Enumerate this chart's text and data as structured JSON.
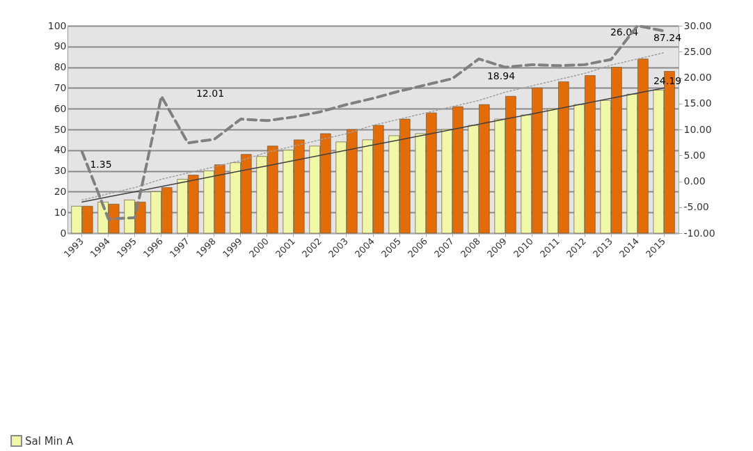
{
  "chart_data": {
    "type": "bar",
    "categories": [
      "1993",
      "1994",
      "1995",
      "1996",
      "1997",
      "1998",
      "1999",
      "2000",
      "2001",
      "2002",
      "2003",
      "2004",
      "2005",
      "2006",
      "2007",
      "2008",
      "2009",
      "2010",
      "2011",
      "2012",
      "2013",
      "2014",
      "2015"
    ],
    "series": [
      {
        "name": "Sal Min A",
        "type": "bar",
        "color": "#f0f8a8",
        "values": [
          13,
          15,
          16,
          20,
          26,
          30,
          34,
          37,
          40,
          42,
          44,
          45,
          47,
          48,
          50,
          52,
          55,
          57,
          60,
          62,
          64,
          67,
          69
        ]
      },
      {
        "type": "bar",
        "color": "#e36c09",
        "values": [
          13,
          14,
          15,
          22,
          28,
          33,
          38,
          42,
          45,
          48,
          50,
          52,
          55,
          58,
          61,
          62,
          66,
          70,
          73,
          76,
          80,
          84,
          78
        ]
      },
      {
        "type": "line",
        "axis": "y2",
        "color": "#808080",
        "line_style": "dashed",
        "values": [
          5.7,
          -7.3,
          -7,
          16.4,
          7.4,
          8.1,
          12,
          11.7,
          12.4,
          13.4,
          14.8,
          16,
          17.4,
          18.6,
          19.8,
          23.6,
          22,
          22.5,
          22.3,
          22.5,
          23.5,
          30,
          29
        ]
      },
      {
        "type": "line",
        "color": "#a0a0a0",
        "line_style": "dotted",
        "values": [
          16,
          19,
          22,
          26,
          29,
          32,
          35,
          39,
          42,
          45,
          48,
          52,
          55,
          58,
          61,
          64,
          68,
          71,
          74,
          77,
          81,
          84,
          87
        ]
      },
      {
        "type": "line",
        "color": "#404040",
        "line_style": "solid",
        "values": [
          15,
          17.5,
          20,
          22.5,
          25,
          27.5,
          30,
          32.5,
          35,
          37.5,
          40,
          42.5,
          45,
          47.5,
          50,
          52.5,
          55,
          57.5,
          60,
          62.5,
          65,
          67.5,
          70
        ]
      }
    ],
    "ylim": [
      0,
      100
    ],
    "yticks": [
      0,
      10,
      20,
      30,
      40,
      50,
      60,
      70,
      80,
      90,
      100
    ],
    "y2lim": [
      -10,
      30
    ],
    "y2ticks": [
      {
        "value": -10,
        "label": "-10.00"
      },
      {
        "value": -5,
        "label": "-5.00"
      },
      {
        "value": 0,
        "label": "0.00"
      },
      {
        "value": 5,
        "label": "5.00"
      },
      {
        "value": 10,
        "label": "10.00"
      },
      {
        "value": 15,
        "label": "15.00"
      },
      {
        "value": 20,
        "label": "20.00"
      },
      {
        "value": 25,
        "label": "25.00"
      },
      {
        "value": 30,
        "label": "30.00"
      }
    ],
    "grid": "y",
    "legend": "bottom left",
    "marker": "none",
    "annotations": [
      "1.35",
      "12.01",
      "18.94",
      "26.04",
      "87.24",
      "24.19"
    ]
  }
}
